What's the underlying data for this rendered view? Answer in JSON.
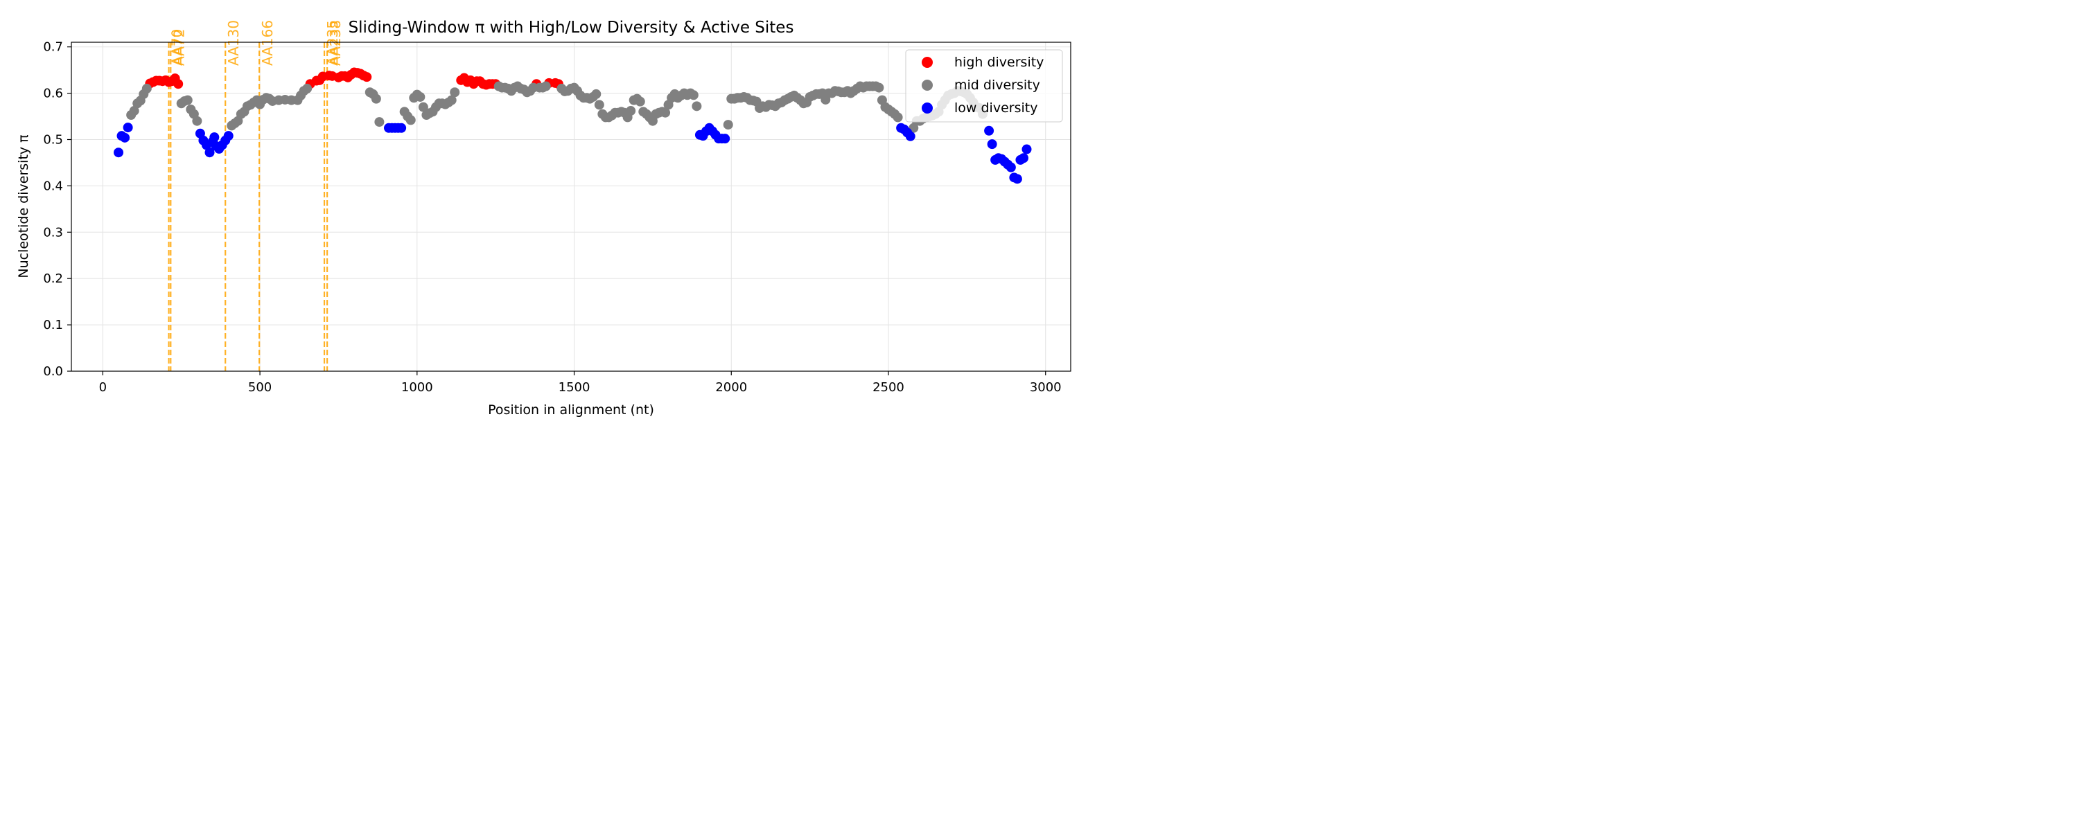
{
  "chart_data": {
    "type": "scatter",
    "title": "Sliding-Window π with High/Low Diversity & Active Sites",
    "xlabel": "Position in alignment (nt)",
    "ylabel": "Nucleotide diversity π",
    "xlim": [
      -100,
      3080
    ],
    "ylim": [
      0.0,
      0.71
    ],
    "xticks": [
      0,
      500,
      1000,
      1500,
      2000,
      2500,
      3000
    ],
    "xtick_labels": [
      "0",
      "500",
      "1000",
      "1500",
      "2000",
      "2500",
      "3000"
    ],
    "yticks": [
      0.0,
      0.1,
      0.2,
      0.3,
      0.4,
      0.5,
      0.6,
      0.7
    ],
    "ytick_labels": [
      "0.0",
      "0.1",
      "0.2",
      "0.3",
      "0.4",
      "0.5",
      "0.6",
      "0.7"
    ],
    "grid": true,
    "legend_position": "top-right",
    "active_sites": [
      {
        "x": 210,
        "label": "AA70"
      },
      {
        "x": 216,
        "label": "AA72"
      },
      {
        "x": 390,
        "label": "AA130"
      },
      {
        "x": 498,
        "label": "AA166"
      },
      {
        "x": 705,
        "label": "AA235"
      },
      {
        "x": 714,
        "label": "AA238"
      }
    ],
    "series": [
      {
        "name": "high diversity",
        "color": "#ff0000",
        "points": [
          [
            150,
            0.621
          ],
          [
            160,
            0.624
          ],
          [
            170,
            0.627
          ],
          [
            180,
            0.627
          ],
          [
            190,
            0.626
          ],
          [
            200,
            0.628
          ],
          [
            210,
            0.624
          ],
          [
            220,
            0.626
          ],
          [
            230,
            0.632
          ],
          [
            240,
            0.62
          ],
          [
            660,
            0.62
          ],
          [
            680,
            0.627
          ],
          [
            690,
            0.628
          ],
          [
            700,
            0.636
          ],
          [
            720,
            0.638
          ],
          [
            730,
            0.637
          ],
          [
            750,
            0.634
          ],
          [
            760,
            0.637
          ],
          [
            770,
            0.637
          ],
          [
            780,
            0.634
          ],
          [
            790,
            0.64
          ],
          [
            800,
            0.645
          ],
          [
            810,
            0.644
          ],
          [
            820,
            0.642
          ],
          [
            830,
            0.638
          ],
          [
            840,
            0.635
          ],
          [
            1140,
            0.628
          ],
          [
            1150,
            0.633
          ],
          [
            1160,
            0.624
          ],
          [
            1170,
            0.628
          ],
          [
            1180,
            0.62
          ],
          [
            1190,
            0.626
          ],
          [
            1200,
            0.626
          ],
          [
            1210,
            0.62
          ],
          [
            1220,
            0.618
          ],
          [
            1230,
            0.62
          ],
          [
            1240,
            0.62
          ],
          [
            1250,
            0.62
          ],
          [
            1380,
            0.62
          ],
          [
            1420,
            0.622
          ],
          [
            1440,
            0.622
          ],
          [
            1450,
            0.62
          ]
        ]
      },
      {
        "name": "mid diversity",
        "color": "#808080",
        "points": [
          [
            90,
            0.553
          ],
          [
            100,
            0.562
          ],
          [
            110,
            0.578
          ],
          [
            120,
            0.584
          ],
          [
            130,
            0.598
          ],
          [
            140,
            0.61
          ],
          [
            250,
            0.578
          ],
          [
            260,
            0.583
          ],
          [
            270,
            0.585
          ],
          [
            280,
            0.565
          ],
          [
            290,
            0.555
          ],
          [
            300,
            0.54
          ],
          [
            410,
            0.53
          ],
          [
            420,
            0.535
          ],
          [
            430,
            0.54
          ],
          [
            440,
            0.555
          ],
          [
            450,
            0.56
          ],
          [
            460,
            0.572
          ],
          [
            470,
            0.575
          ],
          [
            480,
            0.58
          ],
          [
            490,
            0.585
          ],
          [
            500,
            0.576
          ],
          [
            510,
            0.586
          ],
          [
            520,
            0.59
          ],
          [
            530,
            0.588
          ],
          [
            540,
            0.583
          ],
          [
            560,
            0.585
          ],
          [
            580,
            0.586
          ],
          [
            600,
            0.585
          ],
          [
            620,
            0.585
          ],
          [
            630,
            0.595
          ],
          [
            640,
            0.605
          ],
          [
            650,
            0.61
          ],
          [
            850,
            0.602
          ],
          [
            860,
            0.598
          ],
          [
            870,
            0.588
          ],
          [
            880,
            0.538
          ],
          [
            960,
            0.56
          ],
          [
            970,
            0.55
          ],
          [
            980,
            0.542
          ],
          [
            990,
            0.59
          ],
          [
            1000,
            0.597
          ],
          [
            1010,
            0.592
          ],
          [
            1020,
            0.57
          ],
          [
            1030,
            0.553
          ],
          [
            1040,
            0.557
          ],
          [
            1050,
            0.56
          ],
          [
            1060,
            0.57
          ],
          [
            1070,
            0.578
          ],
          [
            1080,
            0.578
          ],
          [
            1090,
            0.576
          ],
          [
            1100,
            0.58
          ],
          [
            1110,
            0.585
          ],
          [
            1120,
            0.602
          ],
          [
            1260,
            0.615
          ],
          [
            1270,
            0.612
          ],
          [
            1280,
            0.612
          ],
          [
            1290,
            0.61
          ],
          [
            1300,
            0.605
          ],
          [
            1310,
            0.612
          ],
          [
            1320,
            0.615
          ],
          [
            1330,
            0.61
          ],
          [
            1340,
            0.608
          ],
          [
            1350,
            0.602
          ],
          [
            1360,
            0.605
          ],
          [
            1370,
            0.612
          ],
          [
            1390,
            0.612
          ],
          [
            1400,
            0.612
          ],
          [
            1410,
            0.615
          ],
          [
            1460,
            0.61
          ],
          [
            1470,
            0.604
          ],
          [
            1480,
            0.605
          ],
          [
            1490,
            0.61
          ],
          [
            1500,
            0.612
          ],
          [
            1510,
            0.605
          ],
          [
            1520,
            0.595
          ],
          [
            1530,
            0.59
          ],
          [
            1540,
            0.59
          ],
          [
            1550,
            0.588
          ],
          [
            1560,
            0.592
          ],
          [
            1570,
            0.598
          ],
          [
            1580,
            0.575
          ],
          [
            1590,
            0.555
          ],
          [
            1600,
            0.548
          ],
          [
            1610,
            0.548
          ],
          [
            1620,
            0.552
          ],
          [
            1630,
            0.558
          ],
          [
            1640,
            0.558
          ],
          [
            1650,
            0.56
          ],
          [
            1660,
            0.558
          ],
          [
            1670,
            0.548
          ],
          [
            1680,
            0.562
          ],
          [
            1690,
            0.585
          ],
          [
            1700,
            0.588
          ],
          [
            1710,
            0.582
          ],
          [
            1720,
            0.56
          ],
          [
            1730,
            0.555
          ],
          [
            1740,
            0.548
          ],
          [
            1750,
            0.54
          ],
          [
            1760,
            0.555
          ],
          [
            1770,
            0.558
          ],
          [
            1780,
            0.56
          ],
          [
            1790,
            0.558
          ],
          [
            1800,
            0.575
          ],
          [
            1810,
            0.59
          ],
          [
            1820,
            0.598
          ],
          [
            1830,
            0.59
          ],
          [
            1840,
            0.595
          ],
          [
            1850,
            0.6
          ],
          [
            1860,
            0.596
          ],
          [
            1870,
            0.6
          ],
          [
            1880,
            0.596
          ],
          [
            1890,
            0.572
          ],
          [
            1990,
            0.532
          ],
          [
            2000,
            0.588
          ],
          [
            2010,
            0.588
          ],
          [
            2020,
            0.59
          ],
          [
            2030,
            0.59
          ],
          [
            2040,
            0.592
          ],
          [
            2050,
            0.59
          ],
          [
            2060,
            0.585
          ],
          [
            2070,
            0.584
          ],
          [
            2080,
            0.582
          ],
          [
            2090,
            0.568
          ],
          [
            2100,
            0.572
          ],
          [
            2110,
            0.57
          ],
          [
            2120,
            0.575
          ],
          [
            2130,
            0.574
          ],
          [
            2140,
            0.572
          ],
          [
            2150,
            0.578
          ],
          [
            2160,
            0.58
          ],
          [
            2170,
            0.585
          ],
          [
            2180,
            0.588
          ],
          [
            2190,
            0.592
          ],
          [
            2200,
            0.595
          ],
          [
            2210,
            0.59
          ],
          [
            2220,
            0.585
          ],
          [
            2230,
            0.578
          ],
          [
            2240,
            0.58
          ],
          [
            2250,
            0.592
          ],
          [
            2260,
            0.595
          ],
          [
            2270,
            0.598
          ],
          [
            2280,
            0.598
          ],
          [
            2290,
            0.6
          ],
          [
            2300,
            0.586
          ],
          [
            2310,
            0.6
          ],
          [
            2320,
            0.6
          ],
          [
            2330,
            0.605
          ],
          [
            2340,
            0.604
          ],
          [
            2350,
            0.602
          ],
          [
            2360,
            0.602
          ],
          [
            2370,
            0.605
          ],
          [
            2380,
            0.6
          ],
          [
            2390,
            0.605
          ],
          [
            2400,
            0.61
          ],
          [
            2410,
            0.615
          ],
          [
            2420,
            0.612
          ],
          [
            2430,
            0.615
          ],
          [
            2440,
            0.615
          ],
          [
            2450,
            0.615
          ],
          [
            2460,
            0.615
          ],
          [
            2470,
            0.612
          ],
          [
            2480,
            0.585
          ],
          [
            2490,
            0.57
          ],
          [
            2500,
            0.565
          ],
          [
            2510,
            0.56
          ],
          [
            2520,
            0.555
          ],
          [
            2530,
            0.548
          ],
          [
            2580,
            0.525
          ],
          [
            2590,
            0.54
          ],
          [
            2600,
            0.54
          ],
          [
            2610,
            0.545
          ],
          [
            2620,
            0.548
          ],
          [
            2630,
            0.55
          ],
          [
            2640,
            0.552
          ],
          [
            2650,
            0.555
          ],
          [
            2660,
            0.56
          ],
          [
            2670,
            0.575
          ],
          [
            2680,
            0.585
          ],
          [
            2690,
            0.595
          ],
          [
            2700,
            0.598
          ],
          [
            2710,
            0.6
          ],
          [
            2720,
            0.605
          ],
          [
            2730,
            0.604
          ],
          [
            2740,
            0.602
          ],
          [
            2750,
            0.598
          ],
          [
            2760,
            0.59
          ],
          [
            2770,
            0.58
          ],
          [
            2780,
            0.57
          ],
          [
            2790,
            0.568
          ],
          [
            2800,
            0.555
          ]
        ]
      },
      {
        "name": "low diversity",
        "color": "#0000ff",
        "points": [
          [
            50,
            0.472
          ],
          [
            60,
            0.508
          ],
          [
            70,
            0.504
          ],
          [
            80,
            0.526
          ],
          [
            310,
            0.513
          ],
          [
            320,
            0.498
          ],
          [
            330,
            0.488
          ],
          [
            340,
            0.472
          ],
          [
            350,
            0.496
          ],
          [
            355,
            0.505
          ],
          [
            360,
            0.486
          ],
          [
            370,
            0.48
          ],
          [
            380,
            0.488
          ],
          [
            390,
            0.498
          ],
          [
            400,
            0.508
          ],
          [
            910,
            0.525
          ],
          [
            920,
            0.525
          ],
          [
            930,
            0.525
          ],
          [
            940,
            0.525
          ],
          [
            950,
            0.525
          ],
          [
            1900,
            0.51
          ],
          [
            1910,
            0.508
          ],
          [
            1920,
            0.518
          ],
          [
            1930,
            0.525
          ],
          [
            1940,
            0.518
          ],
          [
            1950,
            0.51
          ],
          [
            1960,
            0.502
          ],
          [
            1970,
            0.502
          ],
          [
            1980,
            0.502
          ],
          [
            2540,
            0.525
          ],
          [
            2550,
            0.522
          ],
          [
            2560,
            0.515
          ],
          [
            2570,
            0.507
          ],
          [
            2820,
            0.519
          ],
          [
            2830,
            0.49
          ],
          [
            2840,
            0.456
          ],
          [
            2850,
            0.46
          ],
          [
            2860,
            0.458
          ],
          [
            2870,
            0.452
          ],
          [
            2880,
            0.446
          ],
          [
            2890,
            0.44
          ],
          [
            2900,
            0.418
          ],
          [
            2910,
            0.415
          ],
          [
            2920,
            0.456
          ],
          [
            2930,
            0.46
          ],
          [
            2940,
            0.479
          ]
        ]
      }
    ]
  }
}
